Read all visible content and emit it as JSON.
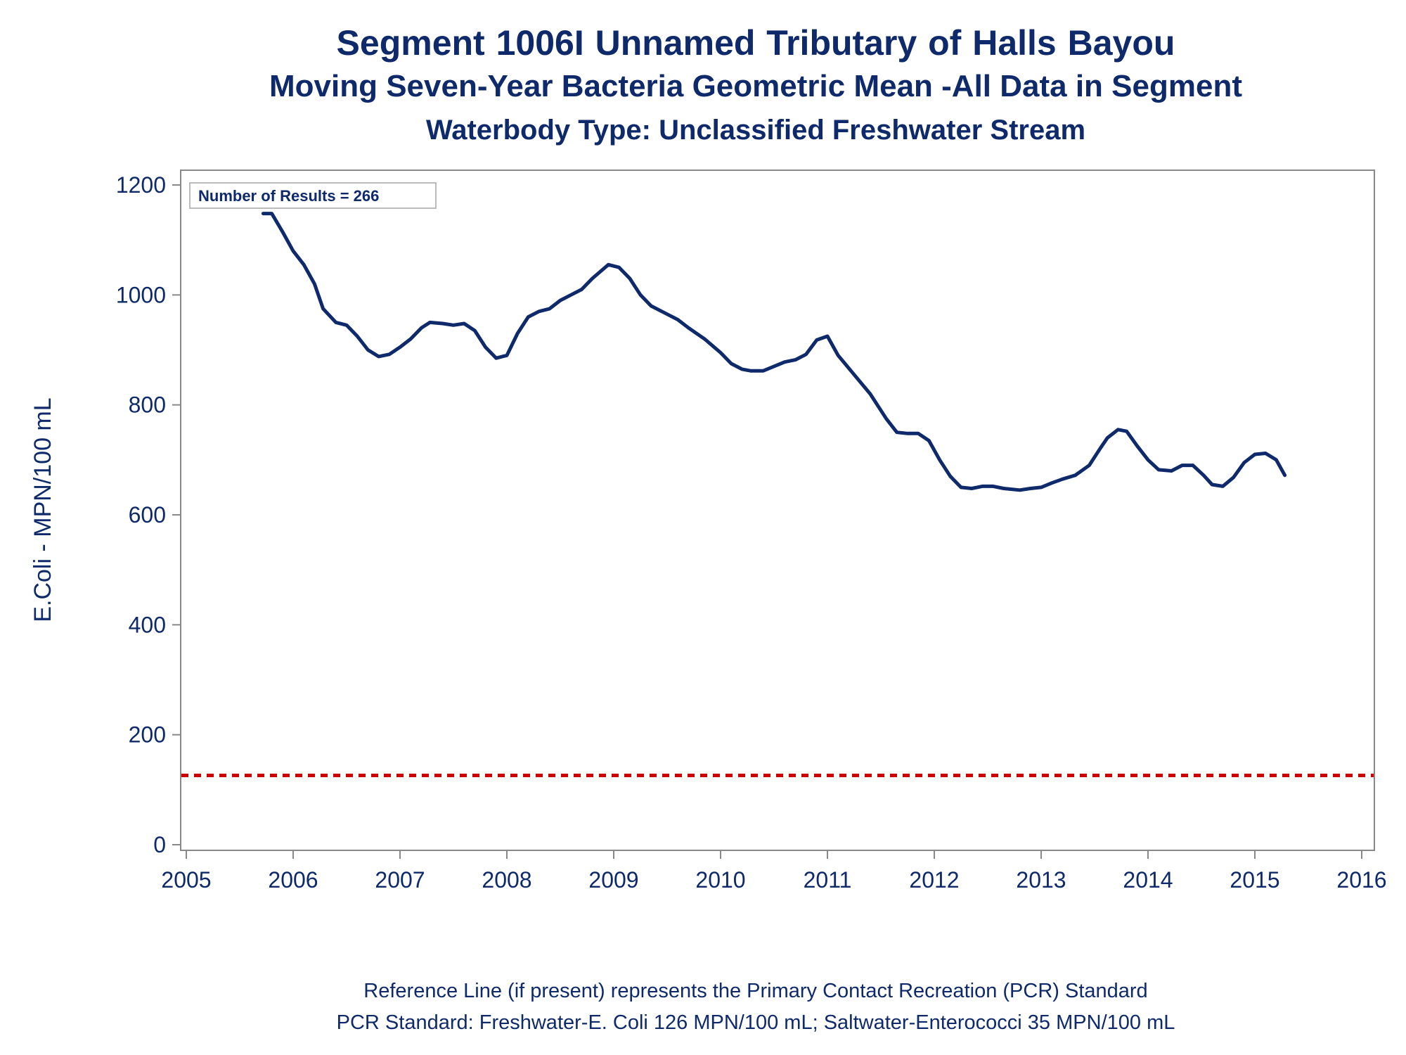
{
  "titles": {
    "line1": "Segment 1006I   Unnamed Tributary of Halls Bayou",
    "line2": "Moving Seven-Year Bacteria Geometric Mean -All Data in Segment",
    "line3": "Waterbody Type: Unclassified Freshwater Stream"
  },
  "footer": {
    "line1": "Reference Line (if present) represents the Primary Contact Recreation (PCR) Standard",
    "line2": "PCR Standard: Freshwater-E. Coli 126 MPN/100 mL; Saltwater-Enterococci 35 MPN/100 mL"
  },
  "colors": {
    "series": "#0f2a6b",
    "reference": "#cc0000",
    "axis": "#888888",
    "text": "#0f2a6b"
  },
  "chart_data": {
    "type": "line",
    "ylabel": "E.Coli - MPN/100 mL",
    "xlabel": "",
    "annotation": "Number of Results = 266",
    "xlim": [
      2005,
      2016
    ],
    "ylim": [
      0,
      1200
    ],
    "x_ticks": [
      2005,
      2006,
      2007,
      2008,
      2009,
      2010,
      2011,
      2012,
      2013,
      2014,
      2015,
      2016
    ],
    "x_tick_labels": [
      "2005",
      "2006",
      "2007",
      "2008",
      "2009",
      "2010",
      "2011",
      "2012",
      "2013",
      "2014",
      "2015",
      "2016"
    ],
    "y_ticks": [
      0,
      200,
      400,
      600,
      800,
      1000,
      1200
    ],
    "y_tick_labels": [
      "0",
      "200",
      "400",
      "600",
      "800",
      "1000",
      "1200"
    ],
    "grid": false,
    "reference_line": {
      "y": 126,
      "style": "dashed"
    },
    "series": [
      {
        "x": [
          2005.72,
          2005.8,
          2005.9,
          2006.0,
          2006.1,
          2006.2,
          2006.28,
          2006.4,
          2006.5,
          2006.6,
          2006.7,
          2006.8,
          2006.9,
          2007.0,
          2007.1,
          2007.2,
          2007.28,
          2007.4,
          2007.5,
          2007.6,
          2007.7,
          2007.8,
          2007.9,
          2008.0,
          2008.1,
          2008.2,
          2008.3,
          2008.4,
          2008.5,
          2008.6,
          2008.7,
          2008.8,
          2008.95,
          2009.05,
          2009.15,
          2009.25,
          2009.35,
          2009.5,
          2009.6,
          2009.7,
          2009.85,
          2010.0,
          2010.1,
          2010.2,
          2010.28,
          2010.4,
          2010.5,
          2010.6,
          2010.7,
          2010.8,
          2010.9,
          2011.0,
          2011.1,
          2011.25,
          2011.4,
          2011.55,
          2011.65,
          2011.75,
          2011.85,
          2011.95,
          2012.05,
          2012.15,
          2012.25,
          2012.35,
          2012.45,
          2012.55,
          2012.65,
          2012.8,
          2012.9,
          2013.0,
          2013.1,
          2013.2,
          2013.32,
          2013.45,
          2013.55,
          2013.62,
          2013.72,
          2013.8,
          2013.9,
          2014.0,
          2014.1,
          2014.22,
          2014.32,
          2014.42,
          2014.52,
          2014.6,
          2014.7,
          2014.8,
          2014.9,
          2015.0,
          2015.1,
          2015.2,
          2015.28
        ],
        "y": [
          1148,
          1148,
          1115,
          1080,
          1055,
          1020,
          975,
          950,
          945,
          925,
          900,
          888,
          892,
          905,
          920,
          940,
          950,
          948,
          945,
          948,
          935,
          905,
          885,
          890,
          930,
          960,
          970,
          975,
          990,
          1000,
          1010,
          1030,
          1055,
          1050,
          1030,
          1000,
          980,
          965,
          955,
          940,
          920,
          895,
          875,
          865,
          862,
          862,
          870,
          878,
          882,
          892,
          918,
          925,
          890,
          855,
          820,
          775,
          750,
          748,
          748,
          735,
          700,
          670,
          650,
          648,
          652,
          652,
          648,
          645,
          648,
          650,
          658,
          665,
          672,
          690,
          720,
          740,
          755,
          752,
          725,
          700,
          682,
          680,
          690,
          690,
          672,
          655,
          652,
          668,
          695,
          710,
          712,
          700,
          672
        ]
      }
    ]
  }
}
